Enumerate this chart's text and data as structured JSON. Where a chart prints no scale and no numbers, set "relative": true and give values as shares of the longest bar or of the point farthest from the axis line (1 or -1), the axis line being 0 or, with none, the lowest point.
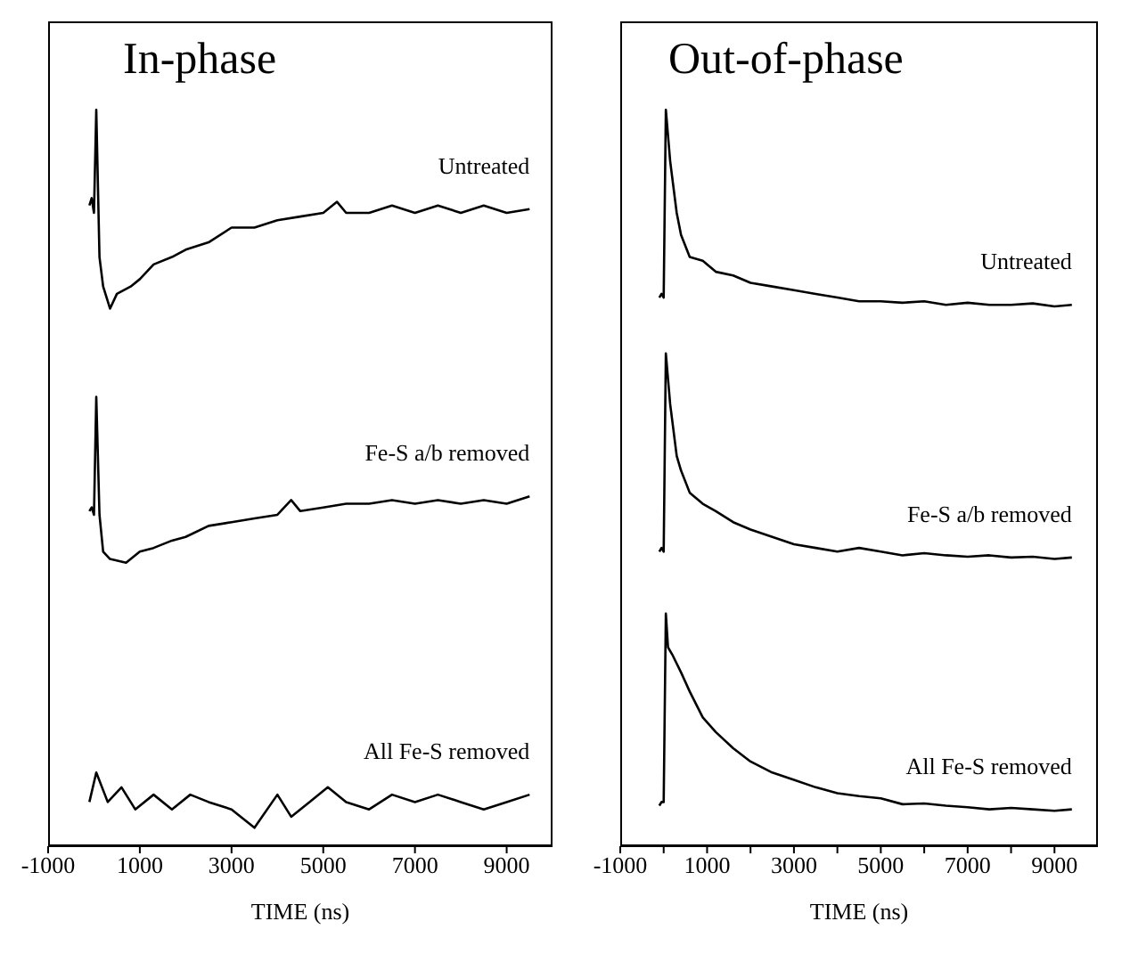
{
  "chart_data": [
    {
      "type": "line",
      "title": "In-phase",
      "xlabel": "TIME (ns)",
      "relative": true,
      "xlim": [
        -1000,
        10000
      ],
      "xticks": [
        -1000,
        1000,
        3000,
        5000,
        7000,
        9000
      ],
      "line_style": "solid",
      "series": [
        {
          "name": "Untreated",
          "color": "#000000",
          "x": [
            -100,
            -50,
            0,
            50,
            120,
            200,
            350,
            500,
            800,
            1000,
            1300,
            1700,
            2000,
            2500,
            3000,
            3500,
            4000,
            4500,
            5000,
            5300,
            5500,
            6000,
            6500,
            7000,
            7500,
            8000,
            8500,
            9000,
            9500
          ],
          "values": [
            0.87,
            0.88,
            0.86,
            1.0,
            0.8,
            0.76,
            0.73,
            0.75,
            0.76,
            0.77,
            0.79,
            0.8,
            0.81,
            0.82,
            0.84,
            0.84,
            0.85,
            0.855,
            0.86,
            0.875,
            0.86,
            0.86,
            0.87,
            0.86,
            0.87,
            0.86,
            0.87,
            0.86,
            0.865
          ]
        },
        {
          "name": "Fe-S a/b removed",
          "color": "#000000",
          "x": [
            -100,
            -50,
            0,
            50,
            120,
            200,
            350,
            700,
            1000,
            1300,
            1700,
            2000,
            2500,
            3000,
            3500,
            4000,
            4300,
            4500,
            5000,
            5500,
            6000,
            6500,
            7000,
            7500,
            8000,
            8500,
            9000,
            9500
          ],
          "values": [
            0.455,
            0.46,
            0.45,
            0.61,
            0.45,
            0.4,
            0.39,
            0.385,
            0.4,
            0.405,
            0.415,
            0.42,
            0.435,
            0.44,
            0.445,
            0.45,
            0.47,
            0.455,
            0.46,
            0.465,
            0.465,
            0.47,
            0.465,
            0.47,
            0.465,
            0.47,
            0.465,
            0.475
          ]
        },
        {
          "name": "All Fe-S removed",
          "color": "#000000",
          "x": [
            -100,
            50,
            300,
            600,
            900,
            1300,
            1700,
            2100,
            2500,
            3000,
            3500,
            4000,
            4300,
            4700,
            5100,
            5500,
            6000,
            6500,
            7000,
            7500,
            8000,
            8500,
            9000,
            9500
          ],
          "values": [
            0.06,
            0.1,
            0.06,
            0.08,
            0.05,
            0.07,
            0.05,
            0.07,
            0.06,
            0.05,
            0.025,
            0.07,
            0.04,
            0.06,
            0.08,
            0.06,
            0.05,
            0.07,
            0.06,
            0.07,
            0.06,
            0.05,
            0.06,
            0.07
          ]
        }
      ]
    },
    {
      "type": "line",
      "title": "Out-of-phase",
      "xlabel": "TIME (ns)",
      "relative": true,
      "xlim": [
        -1000,
        10000
      ],
      "xticks": [
        -1000,
        {
          "value": 0,
          "label": null
        },
        1000,
        {
          "value": 2000,
          "label": null
        },
        3000,
        {
          "value": 4000,
          "label": null
        },
        5000,
        {
          "value": 6000,
          "label": null
        },
        7000,
        {
          "value": 8000,
          "label": null
        },
        9000
      ],
      "line_style": "solid",
      "series": [
        {
          "name": "Untreated",
          "color": "#000000",
          "x": [
            -100,
            -50,
            0,
            50,
            150,
            300,
            400,
            600,
            900,
            1200,
            1600,
            2000,
            2500,
            3000,
            3500,
            4000,
            4500,
            5000,
            5500,
            6000,
            6500,
            7000,
            7500,
            8000,
            8500,
            9000,
            9400
          ],
          "values": [
            0.745,
            0.75,
            0.745,
            1.0,
            0.93,
            0.86,
            0.83,
            0.8,
            0.795,
            0.78,
            0.775,
            0.765,
            0.76,
            0.755,
            0.75,
            0.745,
            0.74,
            0.74,
            0.738,
            0.74,
            0.735,
            0.738,
            0.735,
            0.735,
            0.737,
            0.733,
            0.735
          ]
        },
        {
          "name": "Fe-S a/b removed",
          "color": "#000000",
          "x": [
            -100,
            -50,
            0,
            50,
            150,
            300,
            400,
            600,
            900,
            1200,
            1600,
            2000,
            2500,
            3000,
            3500,
            4000,
            4500,
            5000,
            5500,
            6000,
            6500,
            7000,
            7500,
            8000,
            8500,
            9000,
            9400
          ],
          "values": [
            0.4,
            0.405,
            0.4,
            0.669,
            0.6,
            0.53,
            0.51,
            0.48,
            0.465,
            0.455,
            0.44,
            0.43,
            0.42,
            0.41,
            0.405,
            0.4,
            0.405,
            0.4,
            0.395,
            0.398,
            0.395,
            0.393,
            0.395,
            0.392,
            0.393,
            0.39,
            0.392
          ]
        },
        {
          "name": "All Fe-S removed",
          "color": "#000000",
          "x": [
            -100,
            -50,
            0,
            50,
            100,
            200,
            400,
            600,
            900,
            1200,
            1600,
            2000,
            2500,
            3000,
            3500,
            4000,
            4500,
            5000,
            5500,
            6000,
            6500,
            7000,
            7500,
            8000,
            8500,
            9000,
            9400
          ],
          "values": [
            0.055,
            0.06,
            0.06,
            0.316,
            0.27,
            0.26,
            0.236,
            0.21,
            0.175,
            0.155,
            0.133,
            0.115,
            0.1,
            0.09,
            0.08,
            0.072,
            0.068,
            0.065,
            0.057,
            0.058,
            0.055,
            0.053,
            0.05,
            0.052,
            0.05,
            0.048,
            0.05
          ]
        }
      ]
    }
  ]
}
